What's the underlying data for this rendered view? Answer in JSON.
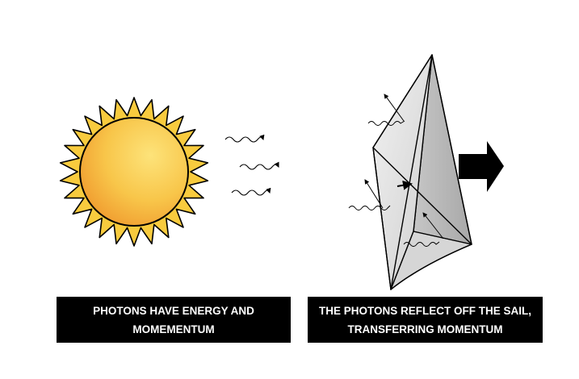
{
  "captions": {
    "left": {
      "line1": "PHOTONS HAVE ENERGY AND",
      "line2": "MOMEMENTUM"
    },
    "right": {
      "line1": "THE PHOTONS REFLECT OFF THE SAIL,",
      "line2": "TRANSFERRING MOMENTUM"
    }
  },
  "colors": {
    "sun_core_light": "#fbd65a",
    "sun_core_dark": "#f3a631",
    "sun_ray": "#f8cb3e",
    "sail_light": "#e9e9e9",
    "sail_dark": "#b9b9b9",
    "arrow": "#000000",
    "caption_bg": "#000000",
    "caption_text": "#ffffff"
  },
  "icons": {
    "sun": "sun-icon",
    "photon": "wavy-photon-icon",
    "sail": "solar-sail-icon",
    "motion": "right-arrow-icon"
  }
}
